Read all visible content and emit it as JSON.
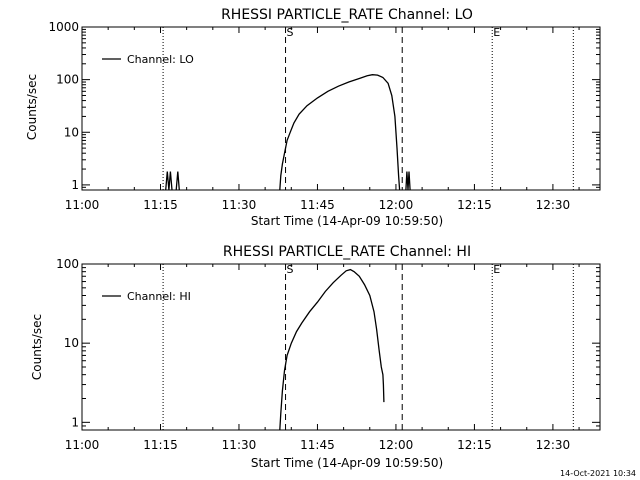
{
  "footer_timestamp": "14-Oct-2021 10:34",
  "chart_data": [
    {
      "type": "line",
      "title": "RHESSI PARTICLE_RATE Channel: LO",
      "xlabel": "Start Time (14-Apr-09 10:59:50)",
      "ylabel": "Counts/sec",
      "yscale": "log",
      "ylim": [
        0.8,
        1000
      ],
      "xlim": [
        0,
        99
      ],
      "x_unit": "minutes after 11:00",
      "xtick_values": [
        0,
        15,
        30,
        45,
        60,
        75,
        90
      ],
      "xtick_labels": [
        "11:00",
        "11:15",
        "11:30",
        "11:45",
        "12:00",
        "12:15",
        "12:30"
      ],
      "ytick_values": [
        1,
        10,
        100,
        1000
      ],
      "ytick_labels": [
        "1",
        "10",
        "100",
        "1000"
      ],
      "legend": {
        "label": "Channel: LO",
        "position": "top-left"
      },
      "series": [
        {
          "name": "Channel: LO",
          "color": "#000000",
          "segments": [
            [
              [
                16.0,
                0.8
              ],
              [
                16.3,
                1.8
              ],
              [
                16.6,
                0.8
              ],
              [
                16.9,
                1.8
              ],
              [
                17.2,
                0.8
              ]
            ],
            [
              [
                18.0,
                0.8
              ],
              [
                18.3,
                1.8
              ],
              [
                18.6,
                0.8
              ]
            ],
            [
              [
                37.8,
                0.8
              ],
              [
                38.0,
                1.5
              ],
              [
                38.3,
                2.5
              ],
              [
                38.7,
                4
              ],
              [
                39.2,
                7
              ],
              [
                39.8,
                10
              ],
              [
                40.5,
                15
              ],
              [
                41.5,
                22
              ],
              [
                43.0,
                32
              ],
              [
                45.0,
                45
              ],
              [
                47.0,
                60
              ],
              [
                49.0,
                75
              ],
              [
                51.0,
                90
              ],
              [
                53.0,
                105
              ],
              [
                54.5,
                118
              ],
              [
                55.5,
                124
              ],
              [
                56.5,
                122
              ],
              [
                57.5,
                110
              ],
              [
                58.5,
                85
              ],
              [
                59.2,
                50
              ],
              [
                59.8,
                20
              ],
              [
                60.2,
                5
              ],
              [
                60.5,
                1.5
              ],
              [
                60.7,
                0.8
              ]
            ],
            [
              [
                61.9,
                0.8
              ],
              [
                62.1,
                1.8
              ],
              [
                62.3,
                0.8
              ],
              [
                62.5,
                1.8
              ],
              [
                62.7,
                0.8
              ]
            ]
          ]
        }
      ],
      "vlines": [
        {
          "x": 15.5,
          "style": "dotted"
        },
        {
          "x": 38.9,
          "style": "dashed",
          "label": "S"
        },
        {
          "x": 61.2,
          "style": "dashed"
        },
        {
          "x": 78.4,
          "style": "dotted",
          "label": "E"
        },
        {
          "x": 93.9,
          "style": "dotted"
        }
      ]
    },
    {
      "type": "line",
      "title": "RHESSI PARTICLE_RATE Channel: HI",
      "xlabel": "Start Time (14-Apr-09 10:59:50)",
      "ylabel": "Counts/sec",
      "yscale": "log",
      "ylim": [
        0.8,
        100
      ],
      "xlim": [
        0,
        99
      ],
      "x_unit": "minutes after 11:00",
      "xtick_values": [
        0,
        15,
        30,
        45,
        60,
        75,
        90
      ],
      "xtick_labels": [
        "11:00",
        "11:15",
        "11:30",
        "11:45",
        "12:00",
        "12:15",
        "12:30"
      ],
      "ytick_values": [
        1,
        10,
        100
      ],
      "ytick_labels": [
        "1",
        "10",
        "100"
      ],
      "legend": {
        "label": "Channel: HI",
        "position": "top-left"
      },
      "series": [
        {
          "name": "Channel: HI",
          "color": "#000000",
          "segments": [
            [
              [
                37.8,
                0.8
              ],
              [
                38.0,
                1.3
              ],
              [
                38.3,
                2.5
              ],
              [
                38.7,
                4.5
              ],
              [
                39.2,
                7
              ],
              [
                40.0,
                10
              ],
              [
                41.0,
                14
              ],
              [
                42.0,
                18
              ],
              [
                43.5,
                25
              ],
              [
                45.0,
                33
              ],
              [
                46.5,
                45
              ],
              [
                48.0,
                58
              ],
              [
                49.5,
                72
              ],
              [
                50.5,
                82
              ],
              [
                51.3,
                85
              ],
              [
                52.0,
                80
              ],
              [
                53.0,
                70
              ],
              [
                54.0,
                55
              ],
              [
                55.0,
                40
              ],
              [
                55.8,
                25
              ],
              [
                56.3,
                15
              ],
              [
                56.8,
                8
              ],
              [
                57.2,
                5
              ],
              [
                57.5,
                4
              ],
              [
                57.6,
                3
              ],
              [
                57.7,
                1.8
              ]
            ]
          ]
        }
      ],
      "vlines": [
        {
          "x": 15.5,
          "style": "dotted"
        },
        {
          "x": 38.9,
          "style": "dashed",
          "label": "S"
        },
        {
          "x": 61.2,
          "style": "dashed"
        },
        {
          "x": 78.4,
          "style": "dotted",
          "label": "E"
        },
        {
          "x": 93.9,
          "style": "dotted"
        }
      ]
    }
  ]
}
